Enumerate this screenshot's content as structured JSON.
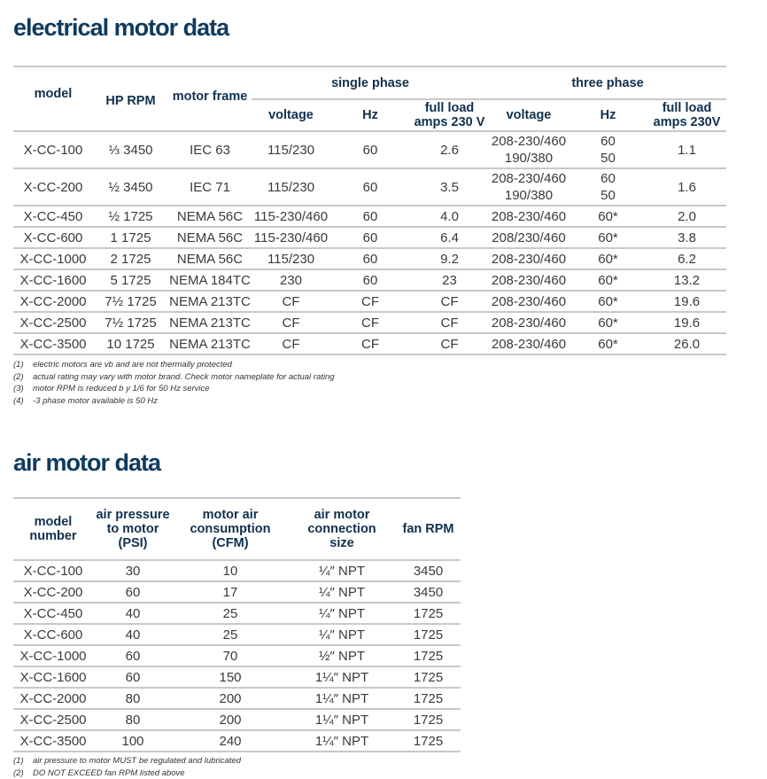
{
  "electrical": {
    "title": "electrical motor data",
    "headers": {
      "model": "model",
      "hp_rpm": "HP RPM",
      "motor_frame": "motor frame",
      "single_phase": "single phase",
      "three_phase": "three phase",
      "voltage": "voltage",
      "hz": "Hz",
      "fla_single": "full load amps 230 V",
      "fla_three": "full load amps 230V"
    },
    "rows": [
      {
        "model": "X-CC-100",
        "hp": "⅓ 3450",
        "frame": "IEC 63",
        "v1": "115/230",
        "hz1": "60",
        "a1": "2.6",
        "v3": [
          "208-230/460",
          "190/380"
        ],
        "hz3": [
          "60",
          "50"
        ],
        "a3": "1.1"
      },
      {
        "model": "X-CC-200",
        "hp": "½ 3450",
        "frame": "IEC 71",
        "v1": "115/230",
        "hz1": "60",
        "a1": "3.5",
        "v3": [
          "208-230/460",
          "190/380"
        ],
        "hz3": [
          "60",
          "50"
        ],
        "a3": "1.6"
      },
      {
        "model": "X-CC-450",
        "hp": "½ 1725",
        "frame": "NEMA 56C",
        "v1": "115-230/460",
        "hz1": "60",
        "a1": "4.0",
        "v3": [
          "208-230/460"
        ],
        "hz3": [
          "60*"
        ],
        "a3": "2.0"
      },
      {
        "model": "X-CC-600",
        "hp": "1 1725",
        "frame": "NEMA 56C",
        "v1": "115-230/460",
        "hz1": "60",
        "a1": "6.4",
        "v3": [
          "208/230/460"
        ],
        "hz3": [
          "60*"
        ],
        "a3": "3.8"
      },
      {
        "model": "X-CC-1000",
        "hp": "2 1725",
        "frame": "NEMA 56C",
        "v1": "115/230",
        "hz1": "60",
        "a1": "9.2",
        "v3": [
          "208-230/460"
        ],
        "hz3": [
          "60*"
        ],
        "a3": "6.2"
      },
      {
        "model": "X-CC-1600",
        "hp": "5 1725",
        "frame": "NEMA 184TC",
        "v1": "230",
        "hz1": "60",
        "a1": "23",
        "v3": [
          "208-230/460"
        ],
        "hz3": [
          "60*"
        ],
        "a3": "13.2"
      },
      {
        "model": "X-CC-2000",
        "hp": "7½ 1725",
        "frame": "NEMA 213TC",
        "v1": "CF",
        "hz1": "CF",
        "a1": "CF",
        "v3": [
          "208-230/460"
        ],
        "hz3": [
          "60*"
        ],
        "a3": "19.6"
      },
      {
        "model": "X-CC-2500",
        "hp": "7½ 1725",
        "frame": "NEMA 213TC",
        "v1": "CF",
        "hz1": "CF",
        "a1": "CF",
        "v3": [
          "208-230/460"
        ],
        "hz3": [
          "60*"
        ],
        "a3": "19.6"
      },
      {
        "model": "X-CC-3500",
        "hp": "10 1725",
        "frame": "NEMA 213TC",
        "v1": "CF",
        "hz1": "CF",
        "a1": "CF",
        "v3": [
          "208-230/460"
        ],
        "hz3": [
          "60*"
        ],
        "a3": "26.0"
      }
    ],
    "notes": [
      {
        "n": "(1)",
        "text": "electric motors are vb and are not thermally protected"
      },
      {
        "n": "(2)",
        "text": "actual rating may vary with motor brand.  Check motor nameplate for actual rating"
      },
      {
        "n": "(3)",
        "text": "motor RPM is reduced b y 1/6 for 50 Hz service"
      },
      {
        "n": "(4)",
        "text": "-3 phase motor available is 50 Hz"
      }
    ]
  },
  "air": {
    "title": "air motor data",
    "headers": {
      "model": "model number",
      "psi": "air pressure to motor (PSI)",
      "cfm": "motor air consumption (CFM)",
      "conn": "air motor connection size",
      "rpm": "fan RPM"
    },
    "rows": [
      [
        "X-CC-100",
        "30",
        "10",
        "¼″ NPT",
        "3450"
      ],
      [
        "X-CC-200",
        "60",
        "17",
        "¼″ NPT",
        "3450"
      ],
      [
        "X-CC-450",
        "40",
        "25",
        "¼″ NPT",
        "1725"
      ],
      [
        "X-CC-600",
        "40",
        "25",
        "¼″ NPT",
        "1725"
      ],
      [
        "X-CC-1000",
        "60",
        "70",
        "½″ NPT",
        "1725"
      ],
      [
        "X-CC-1600",
        "60",
        "150",
        "1¼″ NPT",
        "1725"
      ],
      [
        "X-CC-2000",
        "80",
        "200",
        "1¼″ NPT",
        "1725"
      ],
      [
        "X-CC-2500",
        "80",
        "200",
        "1¼″ NPT",
        "1725"
      ],
      [
        "X-CC-3500",
        "100",
        "240",
        "1¼″ NPT",
        "1725"
      ]
    ],
    "notes": [
      {
        "n": "(1)",
        "text": "air pressure to motor MUST be regulated and lubricated"
      },
      {
        "n": "(2)",
        "text": "DO NOT EXCEED fan RPM listed above"
      }
    ]
  }
}
